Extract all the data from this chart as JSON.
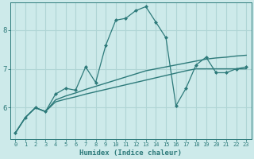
{
  "xlabel": "Humidex (Indice chaleur)",
  "background_color": "#cdeaea",
  "grid_color": "#b0d8d8",
  "line_color": "#2d7a7a",
  "ylim": [
    5.2,
    8.7
  ],
  "xlim": [
    -0.5,
    23.5
  ],
  "y_ticks": [
    6,
    7,
    8
  ],
  "x_ticks": [
    0,
    1,
    2,
    3,
    4,
    5,
    6,
    7,
    8,
    9,
    10,
    11,
    12,
    13,
    14,
    15,
    16,
    17,
    18,
    19,
    20,
    21,
    22,
    23
  ],
  "jagged": [
    5.35,
    5.75,
    6.0,
    5.9,
    6.35,
    6.5,
    6.45,
    7.05,
    6.65,
    7.6,
    8.25,
    8.3,
    8.5,
    8.6,
    8.2,
    7.8,
    6.05,
    6.5,
    7.1,
    7.3,
    6.9,
    6.9,
    7.0,
    7.05
  ],
  "linear_upper": [
    5.35,
    5.75,
    6.0,
    5.9,
    6.2,
    6.3,
    6.38,
    6.47,
    6.55,
    6.63,
    6.71,
    6.79,
    6.87,
    6.95,
    7.0,
    7.05,
    7.1,
    7.15,
    7.2,
    7.25,
    7.28,
    7.3,
    7.33,
    7.35
  ],
  "linear_lower": [
    5.35,
    5.75,
    6.0,
    5.9,
    6.15,
    6.22,
    6.28,
    6.35,
    6.41,
    6.47,
    6.53,
    6.59,
    6.65,
    6.71,
    6.77,
    6.83,
    6.89,
    6.95,
    7.0,
    7.0,
    7.0,
    7.0,
    7.0,
    7.0
  ]
}
